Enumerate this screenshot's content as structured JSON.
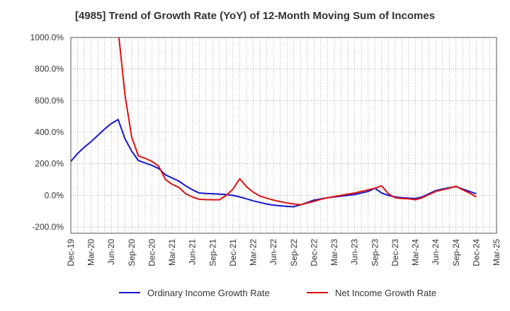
{
  "chart_data": {
    "type": "line",
    "title": "[4985]  Trend of Growth Rate (YoY) of 12-Month Moving Sum of Incomes",
    "xlabel": "",
    "ylabel": "",
    "ylim": [
      -240,
      1000
    ],
    "y_ticks": [
      {
        "value": 1000,
        "label": "1000.0%"
      },
      {
        "value": 800,
        "label": "800.0%"
      },
      {
        "value": 600,
        "label": "600.0%"
      },
      {
        "value": 400,
        "label": "400.0%"
      },
      {
        "value": 200,
        "label": "200.0%"
      },
      {
        "value": 0,
        "label": "0.0%"
      },
      {
        "value": -200,
        "label": "-200.0%"
      }
    ],
    "x_ticks": [
      "Dec-19",
      "Mar-20",
      "Jun-20",
      "Sep-20",
      "Dec-20",
      "Mar-21",
      "Jun-21",
      "Sep-21",
      "Dec-21",
      "Mar-22",
      "Jun-22",
      "Sep-22",
      "Dec-22",
      "Mar-23",
      "Jun-23",
      "Sep-23",
      "Dec-23",
      "Mar-24",
      "Jun-24",
      "Sep-24",
      "Dec-24",
      "Mar-25"
    ],
    "x_start": "Dec-19",
    "x_end": "Mar-25",
    "grid": true,
    "legend": "bottom",
    "series": [
      {
        "name": "Ordinary Income Growth Rate",
        "color": "#1515cc",
        "values": [
          {
            "x": "Dec-19",
            "y": 215
          },
          {
            "x": "Jan-20",
            "y": 265
          },
          {
            "x": "Feb-20",
            "y": 305
          },
          {
            "x": "Mar-20",
            "y": 340
          },
          {
            "x": "Apr-20",
            "y": 380
          },
          {
            "x": "May-20",
            "y": 420
          },
          {
            "x": "Jun-20",
            "y": 455
          },
          {
            "x": "Jul-20",
            "y": 480
          },
          {
            "x": "Aug-20",
            "y": 360
          },
          {
            "x": "Sep-20",
            "y": 280
          },
          {
            "x": "Oct-20",
            "y": 220
          },
          {
            "x": "Nov-20",
            "y": 205
          },
          {
            "x": "Dec-20",
            "y": 190
          },
          {
            "x": "Jan-21",
            "y": 170
          },
          {
            "x": "Feb-21",
            "y": 130
          },
          {
            "x": "Mar-21",
            "y": 110
          },
          {
            "x": "Apr-21",
            "y": 90
          },
          {
            "x": "May-21",
            "y": 60
          },
          {
            "x": "Jun-21",
            "y": 35
          },
          {
            "x": "Jul-21",
            "y": 15
          },
          {
            "x": "Aug-21",
            "y": 12
          },
          {
            "x": "Sep-21",
            "y": 10
          },
          {
            "x": "Oct-21",
            "y": 8
          },
          {
            "x": "Nov-21",
            "y": 5
          },
          {
            "x": "Dec-21",
            "y": 0
          },
          {
            "x": "Jan-22",
            "y": -10
          },
          {
            "x": "Feb-22",
            "y": -22
          },
          {
            "x": "Mar-22",
            "y": -35
          },
          {
            "x": "Apr-22",
            "y": -45
          },
          {
            "x": "May-22",
            "y": -55
          },
          {
            "x": "Jun-22",
            "y": -62
          },
          {
            "x": "Jul-22",
            "y": -66
          },
          {
            "x": "Aug-22",
            "y": -70
          },
          {
            "x": "Sep-22",
            "y": -72
          },
          {
            "x": "Oct-22",
            "y": -60
          },
          {
            "x": "Nov-22",
            "y": -45
          },
          {
            "x": "Dec-22",
            "y": -30
          },
          {
            "x": "Jan-23",
            "y": -22
          },
          {
            "x": "Feb-23",
            "y": -15
          },
          {
            "x": "Mar-23",
            "y": -10
          },
          {
            "x": "Apr-23",
            "y": -5
          },
          {
            "x": "May-23",
            "y": 0
          },
          {
            "x": "Jun-23",
            "y": 5
          },
          {
            "x": "Jul-23",
            "y": 15
          },
          {
            "x": "Aug-23",
            "y": 25
          },
          {
            "x": "Sep-23",
            "y": 45
          },
          {
            "x": "Oct-23",
            "y": 15
          },
          {
            "x": "Nov-23",
            "y": 0
          },
          {
            "x": "Dec-23",
            "y": -10
          },
          {
            "x": "Jan-24",
            "y": -15
          },
          {
            "x": "Feb-24",
            "y": -18
          },
          {
            "x": "Mar-24",
            "y": -20
          },
          {
            "x": "Apr-24",
            "y": -10
          },
          {
            "x": "May-24",
            "y": 10
          },
          {
            "x": "Jun-24",
            "y": 30
          },
          {
            "x": "Jul-24",
            "y": 40
          },
          {
            "x": "Aug-24",
            "y": 48
          },
          {
            "x": "Sep-24",
            "y": 55
          },
          {
            "x": "Oct-24",
            "y": 40
          },
          {
            "x": "Nov-24",
            "y": 25
          },
          {
            "x": "Dec-24",
            "y": 10
          }
        ]
      },
      {
        "name": "Net Income Growth Rate",
        "color": "#dd1111",
        "values": [
          {
            "x": "Jul-20",
            "y": 1050
          },
          {
            "x": "Aug-20",
            "y": 640
          },
          {
            "x": "Sep-20",
            "y": 370
          },
          {
            "x": "Oct-20",
            "y": 250
          },
          {
            "x": "Nov-20",
            "y": 235
          },
          {
            "x": "Dec-20",
            "y": 215
          },
          {
            "x": "Jan-21",
            "y": 185
          },
          {
            "x": "Feb-21",
            "y": 100
          },
          {
            "x": "Mar-21",
            "y": 70
          },
          {
            "x": "Apr-21",
            "y": 50
          },
          {
            "x": "May-21",
            "y": 10
          },
          {
            "x": "Jun-21",
            "y": -10
          },
          {
            "x": "Jul-21",
            "y": -25
          },
          {
            "x": "Aug-21",
            "y": -27
          },
          {
            "x": "Sep-21",
            "y": -28
          },
          {
            "x": "Oct-21",
            "y": -28
          },
          {
            "x": "Nov-21",
            "y": 0
          },
          {
            "x": "Dec-21",
            "y": 40
          },
          {
            "x": "Jan-22",
            "y": 105
          },
          {
            "x": "Feb-22",
            "y": 55
          },
          {
            "x": "Mar-22",
            "y": 20
          },
          {
            "x": "Apr-22",
            "y": -5
          },
          {
            "x": "May-22",
            "y": -18
          },
          {
            "x": "Jun-22",
            "y": -30
          },
          {
            "x": "Jul-22",
            "y": -40
          },
          {
            "x": "Aug-22",
            "y": -48
          },
          {
            "x": "Sep-22",
            "y": -55
          },
          {
            "x": "Oct-22",
            "y": -60
          },
          {
            "x": "Nov-22",
            "y": -48
          },
          {
            "x": "Dec-22",
            "y": -38
          },
          {
            "x": "Jan-23",
            "y": -25
          },
          {
            "x": "Feb-23",
            "y": -15
          },
          {
            "x": "Mar-23",
            "y": -8
          },
          {
            "x": "Apr-23",
            "y": 0
          },
          {
            "x": "May-23",
            "y": 8
          },
          {
            "x": "Jun-23",
            "y": 15
          },
          {
            "x": "Jul-23",
            "y": 25
          },
          {
            "x": "Aug-23",
            "y": 35
          },
          {
            "x": "Sep-23",
            "y": 45
          },
          {
            "x": "Oct-23",
            "y": 60
          },
          {
            "x": "Nov-23",
            "y": 10
          },
          {
            "x": "Dec-23",
            "y": -15
          },
          {
            "x": "Jan-24",
            "y": -20
          },
          {
            "x": "Feb-24",
            "y": -22
          },
          {
            "x": "Mar-24",
            "y": -28
          },
          {
            "x": "Apr-24",
            "y": -15
          },
          {
            "x": "May-24",
            "y": 5
          },
          {
            "x": "Jun-24",
            "y": 25
          },
          {
            "x": "Jul-24",
            "y": 35
          },
          {
            "x": "Aug-24",
            "y": 45
          },
          {
            "x": "Sep-24",
            "y": 58
          },
          {
            "x": "Oct-24",
            "y": 35
          },
          {
            "x": "Nov-24",
            "y": 15
          },
          {
            "x": "Dec-24",
            "y": -10
          }
        ]
      }
    ]
  }
}
